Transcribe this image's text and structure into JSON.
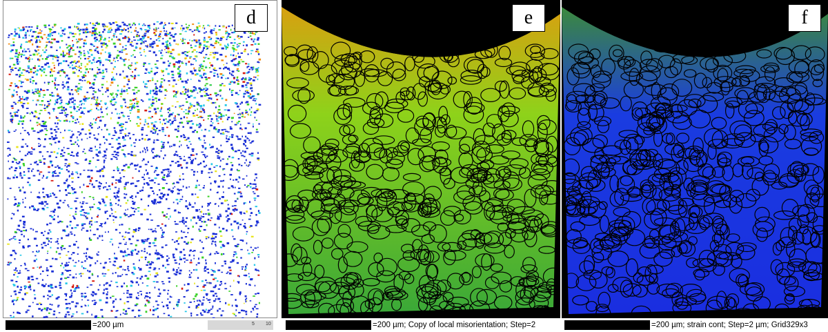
{
  "panels": {
    "d": {
      "letter": "d",
      "caption": "=200 µm",
      "key_ticks": [
        "5",
        "10"
      ]
    },
    "e": {
      "letter": "e",
      "caption": "=200 µm; Copy of local misorientation; Step=2"
    },
    "f": {
      "letter": "f",
      "caption": "=200 µm; strain cont; Step=2 µm; Grid329x3"
    }
  },
  "colors": {
    "background": "#ffffff",
    "blue": "#1a2fd6",
    "cyan": "#27c8e8",
    "green": "#3bd12a",
    "yellow": "#e8e41c",
    "orange": "#f08a10",
    "red": "#d81a10",
    "black": "#000000"
  }
}
